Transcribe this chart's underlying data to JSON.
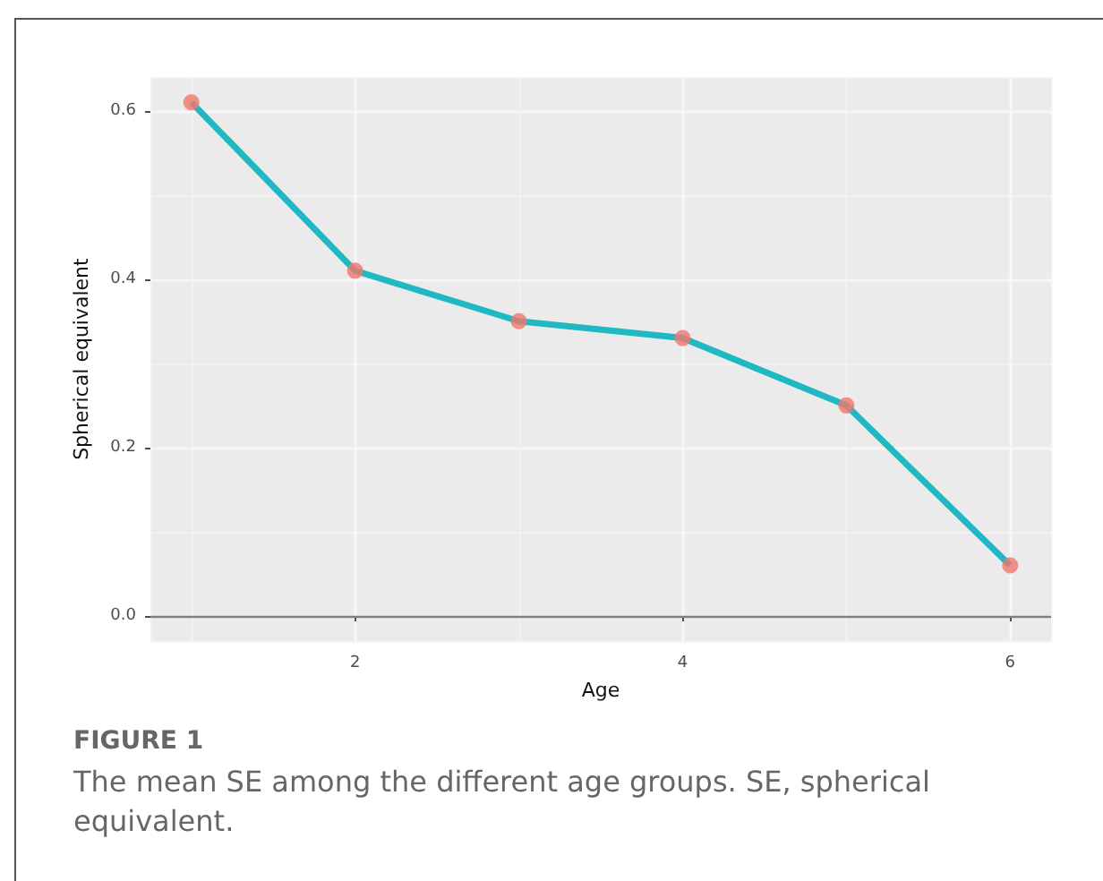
{
  "chart_data": {
    "type": "line",
    "xlabel": "Age",
    "ylabel": "Spherical equivalent",
    "annotations": [
      "FIGURE 1",
      "The mean SE among the different age groups. SE, spherical equivalent."
    ],
    "x": [
      1,
      2,
      3,
      4,
      5,
      6
    ],
    "series": [
      {
        "color": "#1fb8c3",
        "marker": "none",
        "values": [
          0.61,
          0.41,
          0.35,
          0.33,
          0.25,
          0.06
        ]
      },
      {
        "type": "scatter",
        "color": "#f3766b",
        "marker": "circle",
        "values": [
          0.61,
          0.41,
          0.35,
          0.33,
          0.25,
          0.06
        ]
      }
    ],
    "xlim": [
      0.75,
      6.25
    ],
    "xticks": [
      2,
      4,
      6
    ],
    "ylim": [
      -0.03,
      0.64
    ],
    "yticks": [
      {
        "value": 0,
        "label": "0.0"
      },
      {
        "value": 0.2,
        "label": "0.2"
      },
      {
        "value": 0.4,
        "label": "0.4"
      },
      {
        "value": 0.6,
        "label": "0.6"
      }
    ],
    "ref_lines": [
      {
        "axis": "y",
        "value": 0,
        "color": "#7f7f7f"
      }
    ],
    "grid": true
  }
}
